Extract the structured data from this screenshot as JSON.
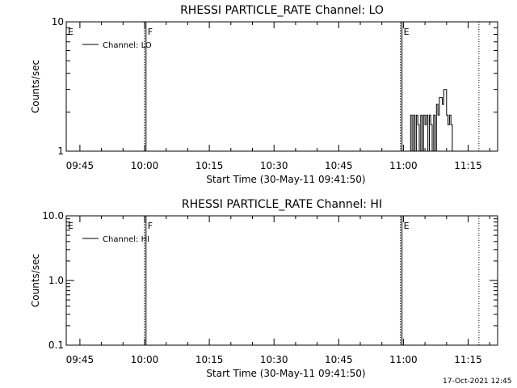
{
  "footer": {
    "timestamp": "17-Oct-2021 12:45"
  },
  "chart_data": [
    {
      "type": "line",
      "title": "RHESSI PARTICLE_RATE Channel: LO",
      "xlabel": "Start Time (30-May-11 09:41:50)",
      "ylabel": "Counts/sec",
      "y_scale": "log",
      "ylim": [
        1,
        10
      ],
      "y_ticks": [
        {
          "v": 1,
          "label": "1"
        },
        {
          "v": 10,
          "label": "10"
        }
      ],
      "xlim": [
        "09:41:50",
        "11:21:50"
      ],
      "x_ticks": [
        "09:45",
        "10:00",
        "10:15",
        "10:30",
        "10:45",
        "11:00",
        "11:15"
      ],
      "legend": {
        "label": "Channel: LO",
        "placement": "top-left"
      },
      "markers": [
        {
          "label": "E",
          "time": "09:41:50",
          "style": "solid"
        },
        {
          "label": "F",
          "time": "10:00:20",
          "style": "solid"
        },
        {
          "label": "E",
          "time": "10:59:40",
          "style": "solid"
        },
        {
          "label": "",
          "time": "11:17:30",
          "style": "dotted"
        }
      ],
      "series": [
        {
          "name": "Channel: LO",
          "x": [
            "11:01:30",
            "11:01:50",
            "11:02:10",
            "11:02:30",
            "11:02:50",
            "11:03:10",
            "11:03:30",
            "11:03:50",
            "11:04:10",
            "11:04:30",
            "11:04:50",
            "11:05:10",
            "11:05:30",
            "11:05:50",
            "11:06:10",
            "11:06:30",
            "11:06:50",
            "11:07:10",
            "11:07:30",
            "11:07:50",
            "11:08:10",
            "11:08:30",
            "11:08:50",
            "11:09:10",
            "11:09:30",
            "11:09:50",
            "11:10:10",
            "11:10:30",
            "11:10:50",
            "11:11:10",
            "11:11:30"
          ],
          "y": [
            1,
            1.9,
            1,
            1.9,
            1,
            1.9,
            1.6,
            1,
            1.9,
            1,
            1.9,
            1.6,
            1.9,
            1,
            1.9,
            1.6,
            1,
            1.9,
            1,
            2.3,
            1.9,
            2.6,
            2.6,
            2.3,
            3.0,
            3.0,
            1.9,
            1.6,
            1.9,
            1.6,
            1
          ]
        }
      ]
    },
    {
      "type": "line",
      "title": "RHESSI PARTICLE_RATE Channel: HI",
      "xlabel": "Start Time (30-May-11 09:41:50)",
      "ylabel": "Counts/sec",
      "y_scale": "log",
      "ylim": [
        0.1,
        10
      ],
      "y_ticks": [
        {
          "v": 0.1,
          "label": "0.1"
        },
        {
          "v": 1,
          "label": "1.0"
        },
        {
          "v": 10,
          "label": "10.0"
        }
      ],
      "xlim": [
        "09:41:50",
        "11:21:50"
      ],
      "x_ticks": [
        "09:45",
        "10:00",
        "10:15",
        "10:30",
        "10:45",
        "11:00",
        "11:15"
      ],
      "legend": {
        "label": "Channel: HI",
        "placement": "top-left"
      },
      "markers": [
        {
          "label": "E",
          "time": "09:41:50",
          "style": "solid"
        },
        {
          "label": "F",
          "time": "10:00:20",
          "style": "solid"
        },
        {
          "label": "E",
          "time": "10:59:40",
          "style": "solid"
        },
        {
          "label": "",
          "time": "11:17:30",
          "style": "dotted"
        }
      ],
      "series": [
        {
          "name": "Channel: HI",
          "x": [],
          "y": []
        }
      ]
    }
  ]
}
